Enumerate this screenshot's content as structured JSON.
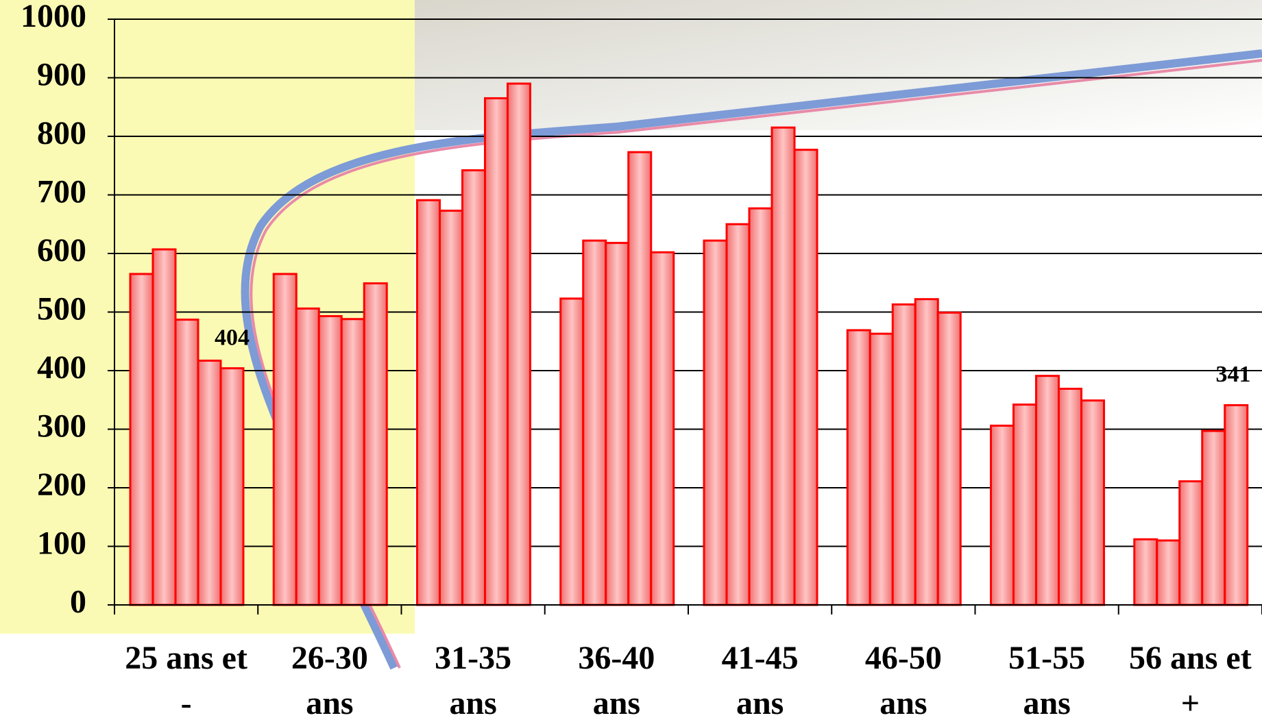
{
  "chart_data": {
    "type": "bar",
    "categories": [
      "25 ans et -",
      "26-30 ans",
      "31-35 ans",
      "36-40 ans",
      "41-45 ans",
      "46-50 ans",
      "51-55 ans",
      "56 ans et +"
    ],
    "series": [
      {
        "color": "#ff0000",
        "values": [
          565,
          565,
          691,
          523,
          622,
          469,
          306,
          112
        ]
      },
      {
        "color": "#ff0000",
        "values": [
          607,
          506,
          673,
          622,
          650,
          463,
          342,
          110
        ]
      },
      {
        "color": "#ff0000",
        "values": [
          487,
          493,
          742,
          618,
          677,
          513,
          391,
          211
        ]
      },
      {
        "color": "#ff0000",
        "values": [
          417,
          488,
          865,
          773,
          815,
          522,
          369,
          297
        ]
      },
      {
        "color": "#ff0000",
        "values": [
          404,
          549,
          890,
          602,
          777,
          499,
          349,
          341
        ],
        "value_labels": [
          "404",
          null,
          null,
          null,
          null,
          null,
          null,
          "341"
        ]
      }
    ],
    "ylim": [
      0,
      1000
    ],
    "yticks": [
      0,
      100,
      200,
      300,
      400,
      500,
      600,
      700,
      800,
      900,
      1000
    ],
    "grid": true
  }
}
